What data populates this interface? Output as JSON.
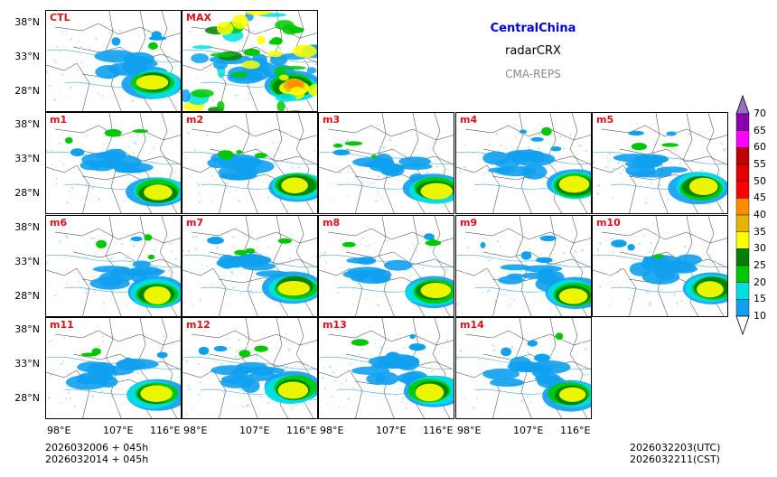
{
  "title": {
    "region": "CentralChina",
    "variable": "radarCRX",
    "source": "CMA-REPS",
    "region_color": "#0000e0",
    "source_color": "#888888",
    "label_color": "#e0101a"
  },
  "panels": [
    {
      "label": "CTL"
    },
    {
      "label": "MAX"
    },
    {
      "label": "m1"
    },
    {
      "label": "m2"
    },
    {
      "label": "m3"
    },
    {
      "label": "m4"
    },
    {
      "label": "m5"
    },
    {
      "label": "m6"
    },
    {
      "label": "m7"
    },
    {
      "label": "m8"
    },
    {
      "label": "m9"
    },
    {
      "label": "m10"
    },
    {
      "label": "m11"
    },
    {
      "label": "m12"
    },
    {
      "label": "m13"
    },
    {
      "label": "m14"
    }
  ],
  "axes": {
    "lat_labels": [
      "38°N",
      "33°N",
      "28°N"
    ],
    "lon_labels": [
      "98°E",
      "107°E",
      "116°E"
    ]
  },
  "footer": {
    "init_line1": "2026032006  +  045h",
    "init_line2": "2026032014  +  045h",
    "valid_utc": "2026032203(UTC)",
    "valid_cst": "2026032211(CST)"
  },
  "colorbar": {
    "levels": [
      "70",
      "65",
      "60",
      "55",
      "50",
      "45",
      "40",
      "35",
      "30",
      "25",
      "20",
      "15",
      "10"
    ],
    "colors": [
      "#9b6fc8",
      "#8a00b0",
      "#ff00ff",
      "#c00000",
      "#e00000",
      "#ff0000",
      "#ff8c00",
      "#e6b400",
      "#ffff00",
      "#008000",
      "#00c800",
      "#00e0e0",
      "#10a0f0"
    ]
  }
}
